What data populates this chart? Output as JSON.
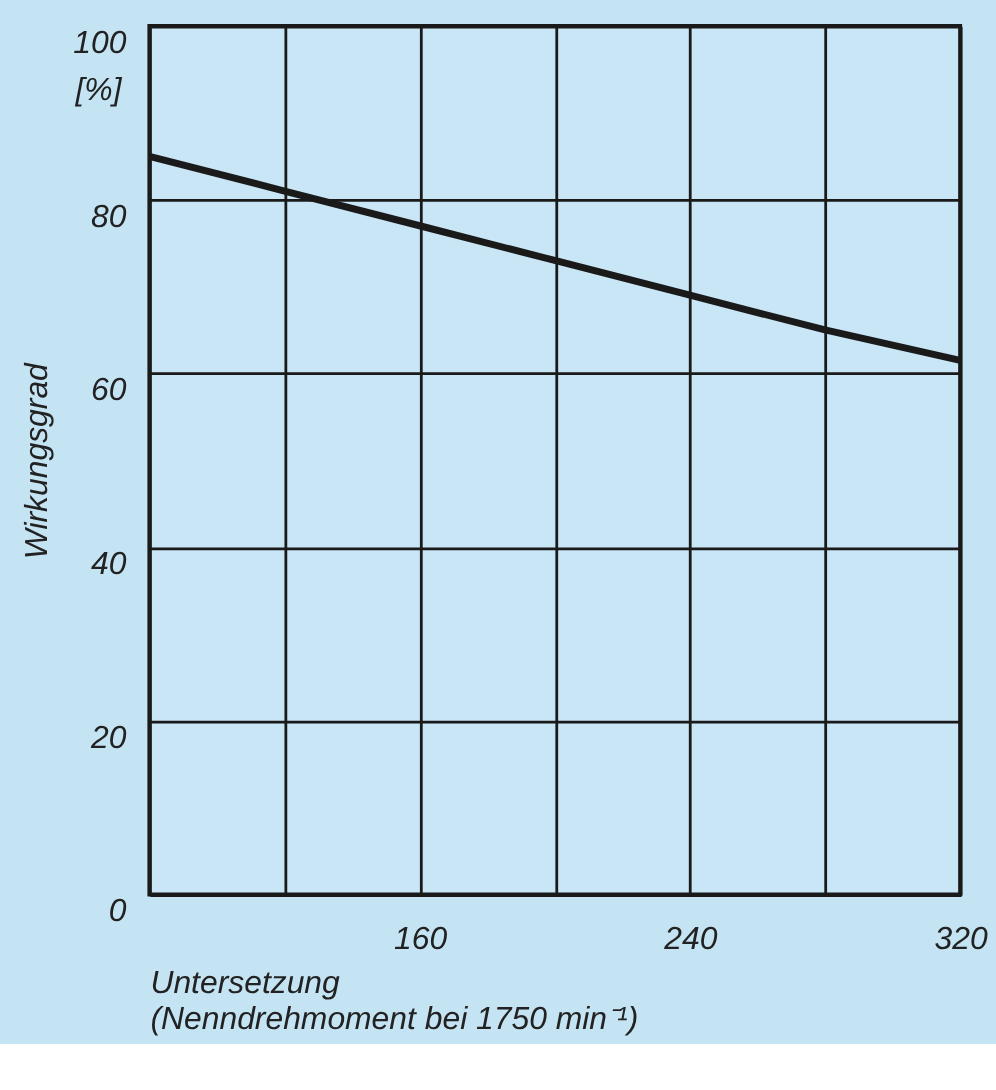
{
  "chart_data": {
    "type": "line",
    "xlabel": "Untersetzung\n(Nenndrehmoment bei 1750 min⁻¹)",
    "ylabel": "Wirkungsgrad",
    "annotations": [
      "[%]"
    ],
    "x": [
      80,
      120,
      160,
      200,
      240,
      280,
      320
    ],
    "series": [
      {
        "color": "#1a1a1a",
        "values": [
          85,
          81,
          77,
          73,
          69,
          65,
          61.5
        ]
      }
    ],
    "xlim": [
      80,
      320
    ],
    "xticks": [
      {
        "value": 80,
        "label": null
      },
      {
        "value": 120,
        "label": null
      },
      160,
      {
        "value": 200,
        "label": null
      },
      240,
      {
        "value": 280,
        "label": null
      },
      320
    ],
    "ylim": [
      0,
      100
    ],
    "yticks": [
      0,
      20,
      40,
      60,
      80,
      100
    ],
    "grid": true,
    "marker": "none",
    "line_style": "solid",
    "legend": false
  }
}
